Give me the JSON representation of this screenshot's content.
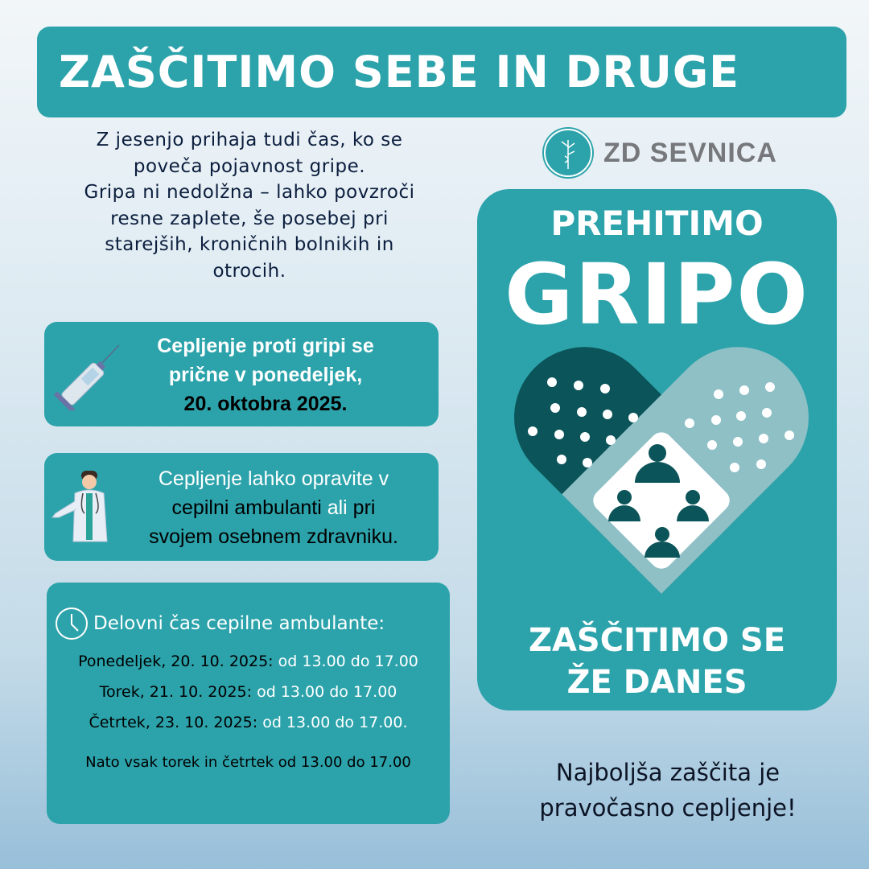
{
  "header": {
    "title": "ZAŠČITIMO SEBE IN DRUGE"
  },
  "intro": {
    "lines": [
      "Z jesenjo prihaja tudi čas, ko se",
      "poveča pojavnost gripe.",
      "Gripa ni nedolžna – lahko povzroči",
      "resne zaplete, še posebej pri",
      "starejših, kroničnih bolnikih in",
      "otrocih."
    ]
  },
  "start_box": {
    "icon": "syringe-icon",
    "line1": "Cepljenje proti gripi se",
    "line2": "pričnе v ponedeljek,",
    "date": "20. oktobra 2025."
  },
  "where_box": {
    "icon": "doctor-icon",
    "line1": "Cepljenje lahko opravite v",
    "line2a": "cepilni ambulanti ",
    "line2b": "ali",
    "line2c": " pri",
    "line3": "svojem osebnem zdravniku."
  },
  "hours_box": {
    "icon": "clock-icon",
    "heading": "Delovni čas cepilne ambulante:",
    "rows": [
      {
        "day": "Ponedeljek, 20. 10. 2025: ",
        "time": "od 13.00 do 17.00"
      },
      {
        "day": "Torek, 21. 10. 2025: ",
        "time": "od 13.00 do 17.00"
      },
      {
        "day": "Četrtek, 23. 10. 2025: ",
        "time": "od 13.00 do 17.00."
      }
    ],
    "note": "Nato vsak torek in četrtek od 13.00 do 17.00"
  },
  "logo": {
    "icon": "tree-of-life-logo",
    "name": "ZD SEVNICA"
  },
  "panel": {
    "line1": "PREHITIMO",
    "line2": "GRIPO",
    "line3": "ZAŠČITIMO SE",
    "line4": "ŽE DANES",
    "graphic": "bandage-heart-people-icon"
  },
  "slogan": {
    "line1": "Najboljša zaščita je",
    "line2": "pravočasno cepljenje!"
  },
  "colors": {
    "teal": "#2ca3ab",
    "dark_teal": "#0b5459",
    "light_teal": "#8ec0c6",
    "logo_gray": "#77787b"
  }
}
